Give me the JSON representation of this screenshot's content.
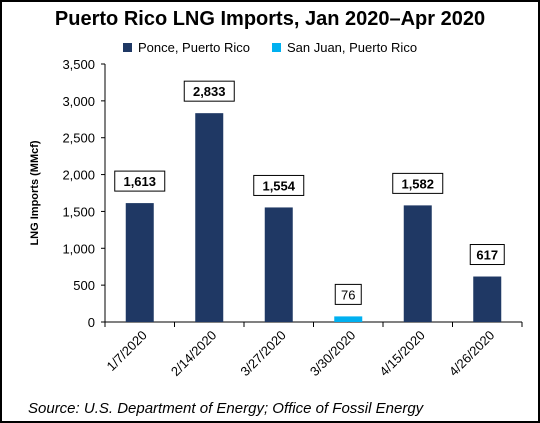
{
  "chart_data": {
    "type": "bar",
    "title": "Puerto Rico LNG Imports, Jan 2020–Apr 2020",
    "ylabel": "LNG Imports (MMcf)",
    "xlabel": "",
    "categories": [
      "1/7/2020",
      "2/14/2020",
      "3/27/2020",
      "3/30/2020",
      "4/15/2020",
      "4/26/2020"
    ],
    "series": [
      {
        "name": "Ponce, Puerto Rico",
        "color": "#1f3864",
        "values": [
          1613,
          2833,
          1554,
          null,
          1582,
          617
        ]
      },
      {
        "name": "San Juan, Puerto Rico",
        "color": "#00b0f0",
        "values": [
          null,
          null,
          null,
          76,
          null,
          null
        ]
      }
    ],
    "data_labels": [
      "1,613",
      "2,833",
      "1,554",
      "76",
      "1,582",
      "617"
    ],
    "ylim": [
      0,
      3500
    ],
    "yticks": [
      0,
      500,
      1000,
      1500,
      2000,
      2500,
      3000,
      3500
    ],
    "ytick_labels": [
      "0",
      "500",
      "1,000",
      "1,500",
      "2,000",
      "2,500",
      "3,000",
      "3,500"
    ],
    "grid": false,
    "legend_position": "top"
  },
  "source_note": "Source: U.S. Department of Energy; Office of Fossil Energy"
}
